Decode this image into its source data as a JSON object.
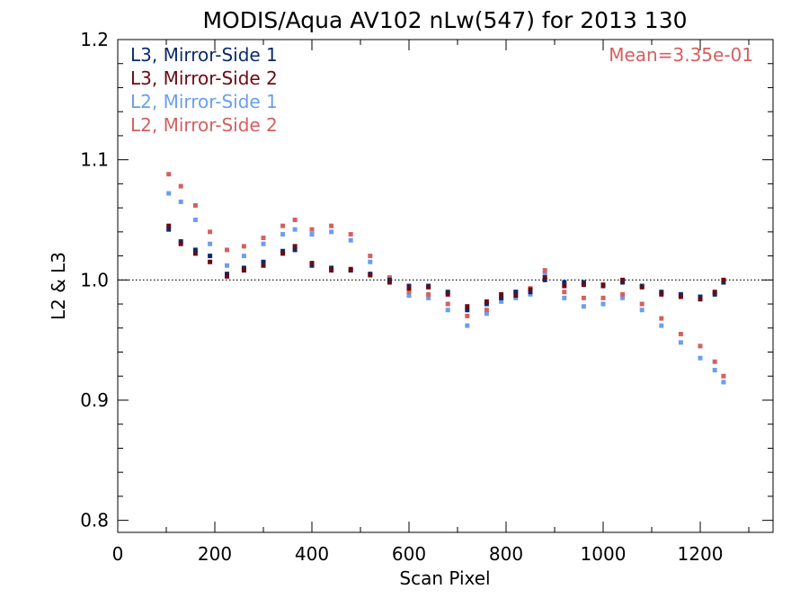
{
  "chart_data": {
    "type": "scatter",
    "title": "MODIS/Aqua AV102 nLw(547) for 2013 130",
    "xlabel": "Scan Pixel",
    "ylabel": "L2 & L3",
    "xlim": [
      0,
      1350
    ],
    "ylim": [
      0.79,
      1.2
    ],
    "xticks": [
      "0",
      "200",
      "400",
      "600",
      "800",
      "1000",
      "1200"
    ],
    "yticks": [
      "0.8",
      "0.9",
      "1.0",
      "1.1",
      "1.2"
    ],
    "reference_line": 1.0,
    "annotation": "Mean=3.35e-01",
    "annotation_color": "#d46060",
    "legend_position": "top-left",
    "series": [
      {
        "name": "L3, Mirror-Side 1",
        "color": "#0b2a6e",
        "x": [
          105,
          130,
          160,
          190,
          225,
          260,
          300,
          340,
          365,
          400,
          440,
          480,
          520,
          560,
          600,
          640,
          680,
          720,
          760,
          790,
          820,
          850,
          880,
          920,
          960,
          1000,
          1040,
          1080,
          1120,
          1160,
          1200,
          1230,
          1248
        ],
        "y": [
          1.042,
          1.032,
          1.025,
          1.02,
          1.005,
          1.01,
          1.015,
          1.024,
          1.025,
          1.012,
          1.01,
          1.008,
          1.005,
          1.0,
          0.995,
          0.995,
          0.99,
          0.975,
          0.98,
          0.985,
          0.99,
          0.99,
          1.0,
          0.998,
          0.998,
          0.995,
          0.998,
          0.995,
          0.99,
          0.988,
          0.986,
          0.988,
          0.998
        ]
      },
      {
        "name": "L3, Mirror-Side 2",
        "color": "#6b0a14",
        "x": [
          105,
          130,
          160,
          190,
          225,
          260,
          300,
          340,
          365,
          400,
          440,
          480,
          520,
          560,
          600,
          640,
          680,
          720,
          760,
          790,
          820,
          850,
          880,
          920,
          960,
          1000,
          1040,
          1080,
          1120,
          1160,
          1200,
          1230,
          1248
        ],
        "y": [
          1.045,
          1.03,
          1.022,
          1.015,
          1.003,
          1.008,
          1.012,
          1.022,
          1.028,
          1.014,
          1.008,
          1.009,
          1.004,
          0.998,
          0.993,
          0.994,
          0.988,
          0.978,
          0.982,
          0.988,
          0.987,
          0.992,
          1.002,
          0.995,
          0.996,
          0.996,
          1.0,
          0.994,
          0.988,
          0.986,
          0.984,
          0.99,
          1.0
        ]
      },
      {
        "name": "L2, Mirror-Side 1",
        "color": "#6a9ef0",
        "x": [
          105,
          130,
          160,
          190,
          225,
          260,
          300,
          340,
          365,
          400,
          440,
          480,
          520,
          560,
          600,
          640,
          680,
          720,
          760,
          790,
          820,
          850,
          880,
          920,
          960,
          1000,
          1040,
          1080,
          1120,
          1160,
          1200,
          1230,
          1248
        ],
        "y": [
          1.072,
          1.065,
          1.05,
          1.03,
          1.012,
          1.02,
          1.03,
          1.038,
          1.042,
          1.038,
          1.04,
          1.033,
          1.015,
          1.0,
          0.987,
          0.985,
          0.975,
          0.962,
          0.972,
          0.982,
          0.985,
          0.988,
          1.005,
          0.985,
          0.978,
          0.98,
          0.985,
          0.975,
          0.962,
          0.948,
          0.935,
          0.925,
          0.915
        ]
      },
      {
        "name": "L2, Mirror-Side 2",
        "color": "#d46060",
        "x": [
          105,
          130,
          160,
          190,
          225,
          260,
          300,
          340,
          365,
          400,
          440,
          480,
          520,
          560,
          600,
          640,
          680,
          720,
          760,
          790,
          820,
          850,
          880,
          920,
          960,
          1000,
          1040,
          1080,
          1120,
          1160,
          1200,
          1230,
          1248
        ],
        "y": [
          1.088,
          1.078,
          1.062,
          1.04,
          1.025,
          1.028,
          1.035,
          1.045,
          1.05,
          1.042,
          1.045,
          1.038,
          1.02,
          1.002,
          0.99,
          0.988,
          0.98,
          0.97,
          0.975,
          0.985,
          0.99,
          0.993,
          1.008,
          0.99,
          0.985,
          0.985,
          0.988,
          0.98,
          0.968,
          0.955,
          0.945,
          0.932,
          0.92
        ]
      }
    ]
  }
}
